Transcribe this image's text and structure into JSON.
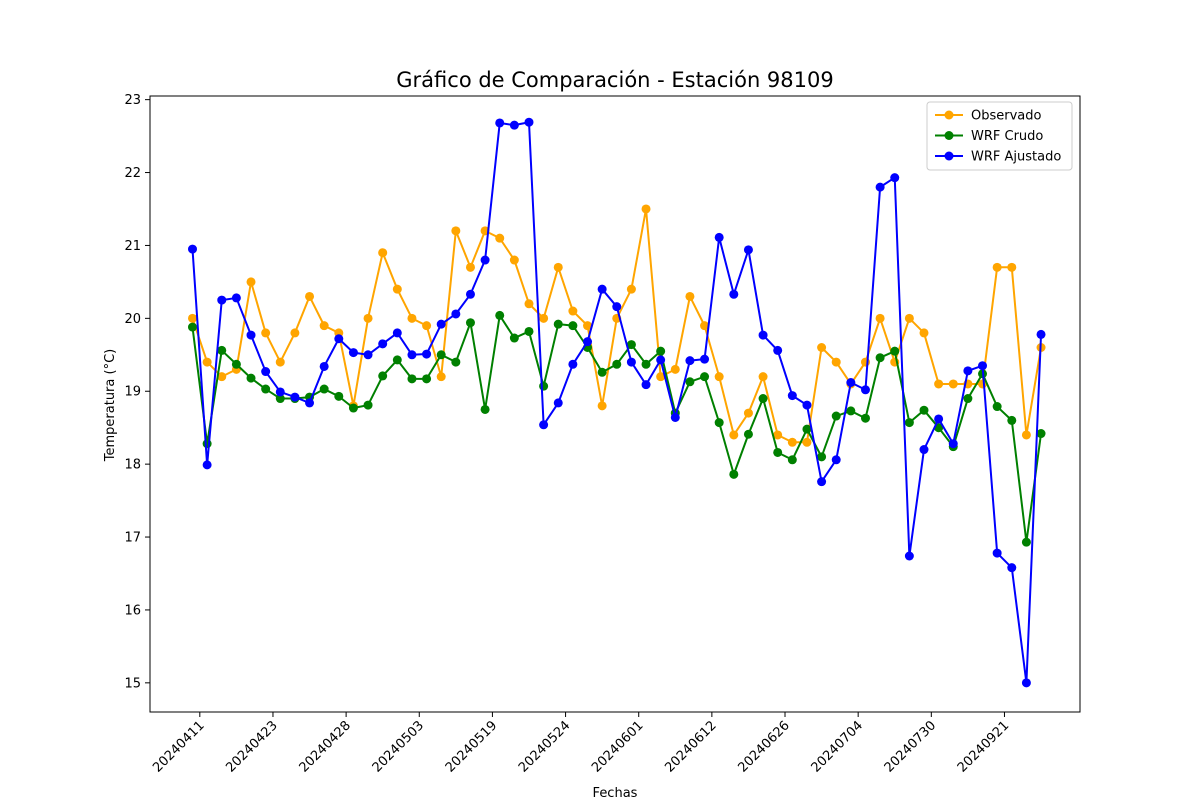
{
  "chart_data": {
    "type": "line",
    "title": "Gráfico de Comparación - Estación 98109",
    "xlabel": "Fechas",
    "ylabel": "Temperatura (°C)",
    "ylim": [
      14.6,
      23.05
    ],
    "yticks": [
      15,
      16,
      17,
      18,
      19,
      20,
      21,
      22,
      23
    ],
    "xtick_labels": [
      "20240411",
      "20240423",
      "20240428",
      "20240503",
      "20240519",
      "20240524",
      "20240601",
      "20240612",
      "20240626",
      "20240704",
      "20240730",
      "20240921"
    ],
    "xtick_positions": [
      0.5,
      5.5,
      10.5,
      15.5,
      20.5,
      25.5,
      30.5,
      35.5,
      40.5,
      45.5,
      50.5,
      55.5
    ],
    "x": [
      0,
      1,
      2,
      3,
      4,
      5,
      6,
      7,
      8,
      9,
      10,
      11,
      12,
      13,
      14,
      15,
      16,
      17,
      18,
      19,
      20,
      21,
      22,
      23,
      24,
      25,
      26,
      27,
      28,
      29,
      30,
      31,
      32,
      33,
      34,
      35,
      36,
      37,
      38,
      39,
      40,
      41,
      42,
      43,
      44,
      45,
      46,
      47,
      48,
      49,
      50,
      51,
      52,
      53,
      54,
      55,
      56,
      57,
      58
    ],
    "grid": false,
    "legend_position": "top-right",
    "series": [
      {
        "name": "Observado",
        "color": "#ffa500",
        "values": [
          20.0,
          19.4,
          19.2,
          19.3,
          20.5,
          19.8,
          19.4,
          19.8,
          20.3,
          19.9,
          19.8,
          18.8,
          20.0,
          20.9,
          20.4,
          20.0,
          19.9,
          19.2,
          21.2,
          20.7,
          21.2,
          21.1,
          20.8,
          20.2,
          20.0,
          20.7,
          20.1,
          19.9,
          18.8,
          20.0,
          20.4,
          21.5,
          19.2,
          19.3,
          20.3,
          19.9,
          19.2,
          18.4,
          18.7,
          19.2,
          18.4,
          18.3,
          18.3,
          19.6,
          19.4,
          19.1,
          19.4,
          20.0,
          19.4,
          20.0,
          19.8,
          19.1,
          19.1,
          19.1,
          19.1,
          20.7,
          20.7,
          18.4,
          19.6
        ]
      },
      {
        "name": "WRF Crudo",
        "color": "#008000",
        "values": [
          19.88,
          18.28,
          19.56,
          19.37,
          19.18,
          19.03,
          18.9,
          18.9,
          18.92,
          19.03,
          18.93,
          18.77,
          18.81,
          19.21,
          19.43,
          19.17,
          19.17,
          19.5,
          19.4,
          19.94,
          18.75,
          20.04,
          19.73,
          19.82,
          19.07,
          19.92,
          19.9,
          19.6,
          19.26,
          19.37,
          19.64,
          19.37,
          19.55,
          18.7,
          19.13,
          19.2,
          18.57,
          17.86,
          18.41,
          18.9,
          18.16,
          18.06,
          18.48,
          18.1,
          18.66,
          18.73,
          18.63,
          19.46,
          19.55,
          18.57,
          18.74,
          18.5,
          18.24,
          18.9,
          19.24,
          18.79,
          18.6,
          16.93,
          18.42
        ]
      },
      {
        "name": "WRF Ajustado",
        "color": "#0000ff",
        "values": [
          20.95,
          17.99,
          20.25,
          20.28,
          19.77,
          19.27,
          18.99,
          18.92,
          18.84,
          19.34,
          19.72,
          19.53,
          19.5,
          19.65,
          19.8,
          19.5,
          19.51,
          19.92,
          20.06,
          20.33,
          20.8,
          22.68,
          22.65,
          22.69,
          18.54,
          18.84,
          19.37,
          19.68,
          20.4,
          20.16,
          19.4,
          19.09,
          19.43,
          18.64,
          19.42,
          19.44,
          21.11,
          20.33,
          20.94,
          19.77,
          19.56,
          18.94,
          18.81,
          17.76,
          18.06,
          19.12,
          19.02,
          21.8,
          21.93,
          16.74,
          18.2,
          18.62,
          18.28,
          19.28,
          19.35,
          16.78,
          16.58,
          15.0,
          19.78
        ]
      }
    ]
  }
}
